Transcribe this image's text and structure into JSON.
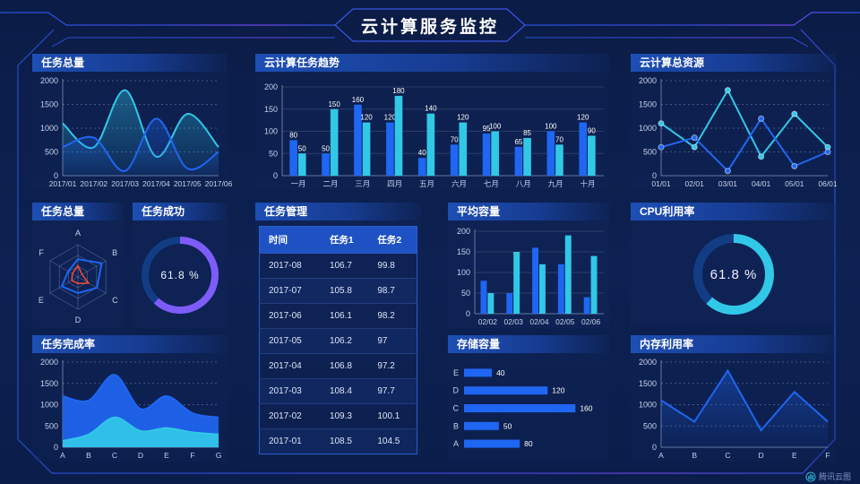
{
  "header": {
    "title": "云计算服务监控"
  },
  "footer": {
    "logo_text": "腾讯云图"
  },
  "colors": {
    "blue": "#1f66f2",
    "cyan": "#31c8e8",
    "purple": "#7d5cf9",
    "orange": "#fd4a2d",
    "donut_track": "#123d85",
    "axis_text": "#c7d2ea",
    "bar_label": "#ffffff"
  },
  "chart_data": [
    {
      "id": "task-total-line",
      "type": "line",
      "title": "任务总量",
      "x": [
        "2017/01",
        "2017/02",
        "2017/03",
        "2017/04",
        "2017/05",
        "2017/06"
      ],
      "yticks": [
        0,
        500,
        1000,
        1500,
        2000
      ],
      "smooth": true,
      "area": true,
      "series": [
        {
          "color": "cyan",
          "values": [
            1100,
            600,
            1800,
            400,
            1300,
            600
          ]
        },
        {
          "color": "blue",
          "values": [
            600,
            800,
            100,
            1200,
            150,
            500
          ]
        }
      ]
    },
    {
      "id": "cloud-task-trend",
      "type": "bar",
      "title": "云计算任务趋势",
      "categories": [
        "一月",
        "二月",
        "三月",
        "四月",
        "五月",
        "六月",
        "七月",
        "八月",
        "九月",
        "十月"
      ],
      "yticks": [
        0,
        50,
        100,
        150,
        200
      ],
      "labels": true,
      "series": [
        {
          "color": "blue",
          "values": [
            80,
            50,
            160,
            120,
            40,
            70,
            95,
            65,
            100,
            120
          ]
        },
        {
          "color": "cyan",
          "values": [
            50,
            150,
            120,
            180,
            140,
            120,
            100,
            85,
            70,
            90
          ]
        }
      ]
    },
    {
      "id": "cloud-total-resources",
      "type": "line",
      "title": "云计算总资源",
      "x": [
        "01/01",
        "02/01",
        "03/01",
        "04/01",
        "05/01",
        "06/01"
      ],
      "yticks": [
        0,
        500,
        1000,
        1500,
        2000
      ],
      "smooth": false,
      "markers": true,
      "series": [
        {
          "color": "cyan",
          "values": [
            1100,
            600,
            1800,
            400,
            1300,
            600
          ]
        },
        {
          "color": "blue",
          "values": [
            600,
            800,
            100,
            1200,
            200,
            500
          ]
        }
      ]
    },
    {
      "id": "task-total-radar",
      "type": "radar",
      "title": "任务总量",
      "axes": [
        "A",
        "B",
        "C",
        "D",
        "E",
        "F"
      ],
      "max": 100,
      "series": [
        {
          "color": "blue",
          "values": [
            55,
            85,
            68,
            50,
            58,
            35
          ]
        },
        {
          "color": "orange",
          "values": [
            35,
            15,
            38,
            20,
            22,
            20
          ]
        }
      ]
    },
    {
      "id": "task-success",
      "type": "donut",
      "title": "任务成功",
      "percent": 61.8,
      "display": "61.8 %",
      "color": "purple"
    },
    {
      "id": "task-management",
      "type": "table",
      "title": "任务管理",
      "headers": [
        "时间",
        "任务1",
        "任务2"
      ],
      "rows": [
        [
          "2017-08",
          "106.7",
          "99.8"
        ],
        [
          "2017-07",
          "105.8",
          "98.7"
        ],
        [
          "2017-06",
          "106.1",
          "98.2"
        ],
        [
          "2017-05",
          "106.2",
          "97"
        ],
        [
          "2017-04",
          "106.8",
          "97.2"
        ],
        [
          "2017-03",
          "108.4",
          "97.7"
        ],
        [
          "2017-02",
          "109.3",
          "100.1"
        ],
        [
          "2017-01",
          "108.5",
          "104.5"
        ]
      ]
    },
    {
      "id": "avg-capacity",
      "type": "bar",
      "title": "平均容量",
      "categories": [
        "02/02",
        "02/03",
        "02/04",
        "02/05",
        "02/06"
      ],
      "yticks": [
        0,
        50,
        100,
        150,
        200
      ],
      "labels": false,
      "series": [
        {
          "color": "blue",
          "values": [
            80,
            50,
            160,
            120,
            40
          ]
        },
        {
          "color": "cyan",
          "values": [
            50,
            150,
            120,
            190,
            140
          ]
        }
      ]
    },
    {
      "id": "storage-capacity",
      "type": "hbar",
      "title": "存储容量",
      "categories": [
        "E",
        "D",
        "C",
        "B",
        "A"
      ],
      "values": [
        40,
        120,
        160,
        50,
        80
      ],
      "xmax": 175,
      "color": "blue"
    },
    {
      "id": "cpu-usage",
      "type": "donut",
      "title": "CPU利用率",
      "percent": 61.8,
      "display": "61.8 %",
      "color": "cyan"
    },
    {
      "id": "memory-usage",
      "type": "line",
      "title": "内存利用率",
      "x": [
        "A",
        "B",
        "C",
        "D",
        "E",
        "F"
      ],
      "yticks": [
        0,
        500,
        1000,
        1500,
        2000
      ],
      "smooth": false,
      "area": true,
      "series": [
        {
          "color": "blue",
          "values": [
            1100,
            600,
            1800,
            400,
            1300,
            600
          ]
        }
      ]
    },
    {
      "id": "task-completion",
      "type": "stacked-area",
      "title": "任务完成率",
      "x": [
        "A",
        "B",
        "C",
        "D",
        "E",
        "F",
        "G"
      ],
      "yticks": [
        0,
        500,
        1000,
        1500,
        2000
      ],
      "smooth": true,
      "series": [
        {
          "color": "blue",
          "values": [
            1200,
            1100,
            1700,
            900,
            1200,
            800,
            700
          ]
        },
        {
          "color": "cyan",
          "values": [
            150,
            300,
            700,
            380,
            450,
            350,
            300
          ]
        }
      ]
    }
  ]
}
